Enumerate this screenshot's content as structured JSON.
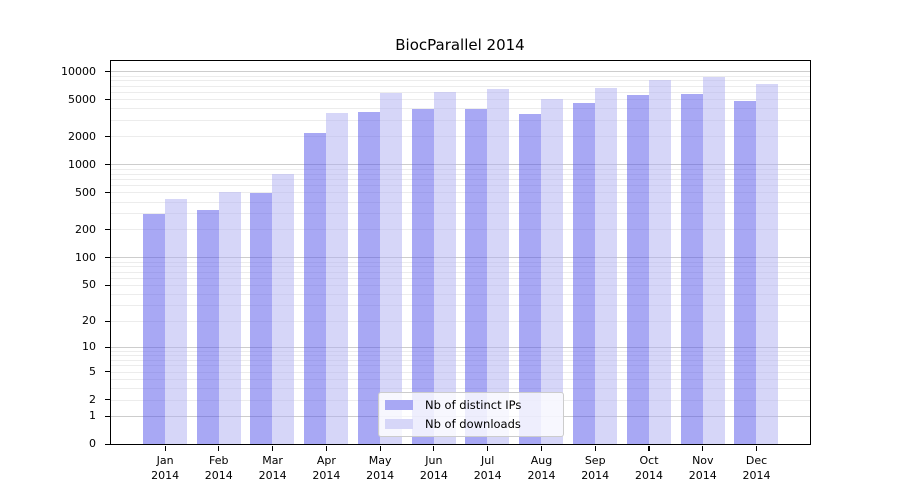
{
  "figure": {
    "title": "BiocParallel 2014",
    "background_color": "#ffffff"
  },
  "chart_data": {
    "type": "bar",
    "title": "BiocParallel 2014",
    "categories": [
      "Jan 2014",
      "Feb 2014",
      "Mar 2014",
      "Apr 2014",
      "May 2014",
      "Jun 2014",
      "Jul 2014",
      "Aug 2014",
      "Sep 2014",
      "Oct 2014",
      "Nov 2014",
      "Dec 2014"
    ],
    "series": [
      {
        "name": "Nb of distinct IPs",
        "color": "#a8a8f4",
        "values": [
          290,
          325,
          495,
          2200,
          3650,
          3950,
          3900,
          3500,
          4550,
          5600,
          5750,
          4850
        ]
      },
      {
        "name": "Nb of downloads",
        "color": "#d6d6f8",
        "values": [
          425,
          510,
          790,
          3600,
          5800,
          6000,
          6500,
          5050,
          6600,
          8000,
          8600,
          7250
        ]
      }
    ],
    "xlabel": "",
    "ylabel": "",
    "yscale": "log10(1+x)",
    "yticks": [
      0,
      1,
      2,
      5,
      10,
      20,
      50,
      100,
      200,
      500,
      1000,
      2000,
      5000,
      10000
    ],
    "ylim": [
      0,
      12900
    ],
    "grid": "horizontal, log minor + decade major",
    "grid_major_color": "#cdcdcd",
    "grid_minor_color": "#ececec",
    "legend_position": "lower center"
  }
}
